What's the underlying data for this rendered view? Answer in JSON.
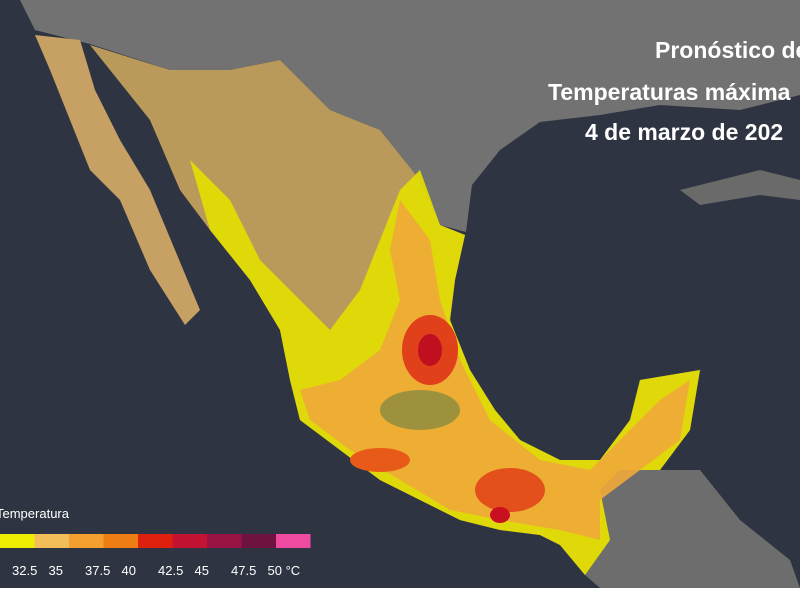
{
  "header": {
    "title_lines": [
      "Pronóstico de",
      "Temperaturas máxima",
      "4 de marzo de 202"
    ]
  },
  "legend": {
    "title": "Temperatura",
    "colors": [
      "#eded00",
      "#f3be5a",
      "#f4a030",
      "#ee7d14",
      "#e0200e",
      "#c21432",
      "#991444",
      "#6e1240",
      "#ee4aa0"
    ],
    "ticks": [
      32.5,
      35,
      37.5,
      40,
      42.5,
      45,
      47.5,
      {
        "value": 50,
        "label": "50 °C"
      }
    ]
  }
}
